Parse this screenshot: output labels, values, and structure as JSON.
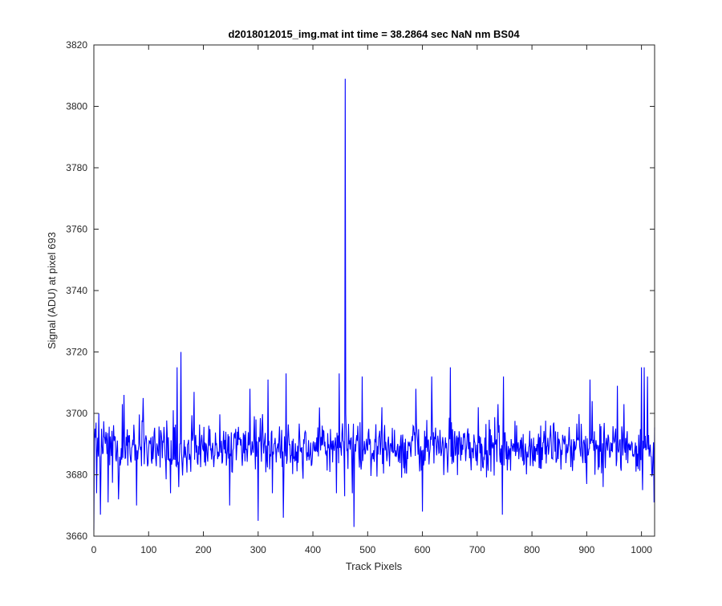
{
  "chart_data": {
    "type": "line",
    "title": "d2018012015_img.mat int time = 38.2864 sec  NaN nm BS04",
    "xlabel": "Track Pixels",
    "ylabel": "Signal (ADU) at pixel 693",
    "xlim": [
      0,
      1024
    ],
    "ylim": [
      3660,
      3820
    ],
    "xticks": [
      0,
      100,
      200,
      300,
      400,
      500,
      600,
      700,
      800,
      900,
      1000
    ],
    "yticks": [
      3660,
      3680,
      3700,
      3720,
      3740,
      3760,
      3780,
      3800,
      3820
    ],
    "grid": false,
    "series": [
      {
        "color": "#0000ff",
        "baseline": 3689,
        "noise_range": [
          3663,
          3720
        ],
        "x": [
          0,
          2,
          5,
          9,
          12,
          20,
          26,
          37,
          45,
          52,
          55,
          68,
          78,
          90,
          100,
          120,
          140,
          145,
          152,
          155,
          159,
          178,
          183,
          189,
          200,
          210,
          220,
          248,
          262,
          285,
          300,
          318,
          326,
          335,
          346,
          351,
          400,
          417,
          443,
          448,
          455,
          458,
          459,
          460,
          462,
          470,
          472,
          475,
          490,
          511,
          520,
          526,
          550,
          588,
          600,
          617,
          630,
          648,
          651,
          658,
          680,
          700,
          702,
          718,
          738,
          746,
          748,
          800,
          840,
          900,
          906,
          910,
          930,
          936,
          956,
          968,
          990,
          1000,
          1002,
          1005,
          1008,
          1011,
          1020,
          1023
        ],
        "y": [
          3662,
          3695,
          3674,
          3700,
          3667,
          3692,
          3671,
          3691,
          3672,
          3703,
          3706,
          3684,
          3670,
          3705,
          3688,
          3691,
          3674,
          3701,
          3715,
          3676,
          3720,
          3693,
          3707,
          3684,
          3688,
          3696,
          3686,
          3670,
          3694,
          3708,
          3665,
          3711,
          3674,
          3689,
          3666,
          3713,
          3690,
          3696,
          3674,
          3713,
          3691,
          3673,
          3809,
          3700,
          3688,
          3692,
          3674,
          3663,
          3712,
          3688,
          3692,
          3702,
          3686,
          3708,
          3668,
          3712,
          3687,
          3690,
          3715,
          3692,
          3688,
          3683,
          3702,
          3688,
          3703,
          3667,
          3712,
          3689,
          3697,
          3677,
          3711,
          3704,
          3676,
          3692,
          3709,
          3703,
          3681,
          3715,
          3675,
          3715,
          3688,
          3712,
          3680,
          3671
        ]
      }
    ]
  }
}
